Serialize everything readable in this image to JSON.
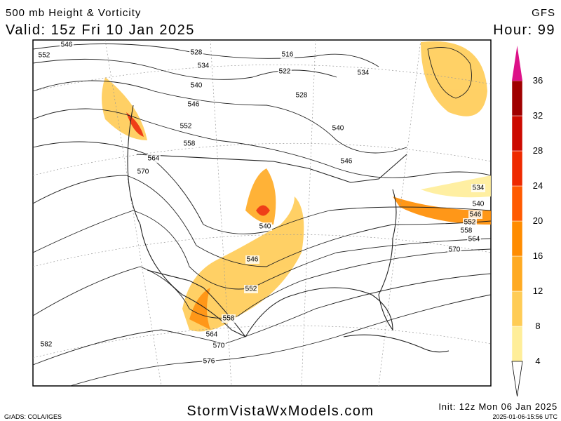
{
  "header": {
    "title": "500 mb Height & Vorticity",
    "model": "GFS",
    "valid": "Valid: 15z Fri 10 Jan 2025",
    "hour": "Hour: 99"
  },
  "colorbar": {
    "labels": [
      4,
      8,
      12,
      16,
      20,
      24,
      28,
      32,
      36
    ],
    "colors": [
      "#ffee99",
      "#ffcc55",
      "#ffaa22",
      "#ff8c00",
      "#ff5a00",
      "#ee2a00",
      "#cc0a00",
      "#a00000"
    ],
    "top_color": "#dd1188"
  },
  "contour_labels": [
    "546",
    "552",
    "528",
    "534",
    "540",
    "546",
    "552",
    "558",
    "564",
    "570",
    "516",
    "522",
    "528",
    "534",
    "540",
    "546",
    "540",
    "546",
    "552",
    "558",
    "564",
    "570",
    "576",
    "582",
    "534",
    "540",
    "546",
    "552",
    "558",
    "564",
    "570"
  ],
  "footer": {
    "credit": "GrADS: COLA/IGES",
    "site": "StormVistaWxModels.com",
    "init": "Init: 12z Mon 06 Jan 2025",
    "timestamp": "2025-01-06-15:56 UTC"
  }
}
